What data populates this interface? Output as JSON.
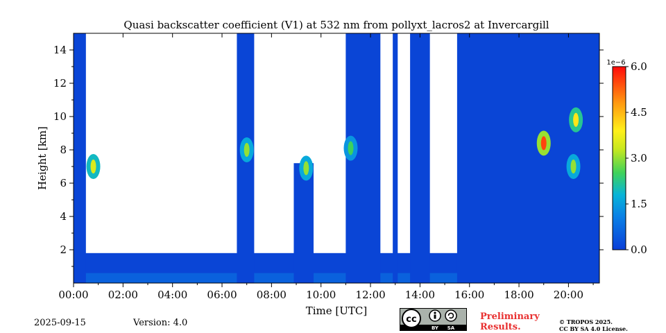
{
  "chart_data": {
    "type": "heatmap",
    "title": "Quasi backscatter coefficient (V1) at 532 nm from pollyxt_lacros2 at Invercargill",
    "xlabel": "Time [UTC]",
    "ylabel": "Height [km]",
    "xlim": [
      0,
      21.25
    ],
    "ylim": [
      0,
      15
    ],
    "x_ticks": [
      "00:00",
      "02:00",
      "04:00",
      "06:00",
      "08:00",
      "10:00",
      "12:00",
      "14:00",
      "16:00",
      "18:00",
      "20:00"
    ],
    "x_tick_values": [
      0,
      2,
      4,
      6,
      8,
      10,
      12,
      14,
      16,
      18,
      20
    ],
    "y_ticks": [
      "2",
      "4",
      "6",
      "8",
      "10",
      "12",
      "14"
    ],
    "y_tick_values": [
      2,
      4,
      6,
      8,
      10,
      12,
      14
    ],
    "colorbar": {
      "label": "1e−6",
      "ticks": [
        "0.0",
        "1.5",
        "3.0",
        "4.5",
        "6.0"
      ],
      "tick_values": [
        0.0,
        1.5,
        3.0,
        4.5,
        6.0
      ],
      "range": [
        0.0,
        6.0
      ]
    },
    "cloud_free_profiles_km": [
      {
        "t_start": 0.0,
        "t_end": 0.5,
        "top": 15
      },
      {
        "t_start": 6.6,
        "t_end": 7.3,
        "top": 15
      },
      {
        "t_start": 8.9,
        "t_end": 9.7,
        "top": 7.2
      },
      {
        "t_start": 11.0,
        "t_end": 12.4,
        "top": 15
      },
      {
        "t_start": 12.9,
        "t_end": 13.1,
        "top": 15
      },
      {
        "t_start": 13.6,
        "t_end": 14.4,
        "top": 15
      },
      {
        "t_start": 15.5,
        "t_end": 21.25,
        "top": 15
      }
    ],
    "aerosol_layers": [
      {
        "t": 0.8,
        "height_km": 7.0,
        "value": 3.5
      },
      {
        "t": 7.0,
        "height_km": 8.0,
        "value": 3.0
      },
      {
        "t": 9.4,
        "height_km": 6.9,
        "value": 3.0
      },
      {
        "t": 11.2,
        "height_km": 8.1,
        "value": 2.5
      },
      {
        "t": 19.0,
        "height_km": 8.4,
        "value": 5.5
      },
      {
        "t": 20.3,
        "height_km": 9.8,
        "value": 4.0
      },
      {
        "t": 20.2,
        "height_km": 7.0,
        "value": 3.0
      }
    ]
  },
  "footer": {
    "date": "2025-09-15",
    "version": "Version: 4.0",
    "preliminary": "Preliminary",
    "results": "Results.",
    "copyright_line1": "© TROPOS 2025.",
    "copyright_line2": "CC BY SA 4.0 License.",
    "license_by": "BY",
    "license_sa": "SA",
    "license_cc": "cc"
  }
}
